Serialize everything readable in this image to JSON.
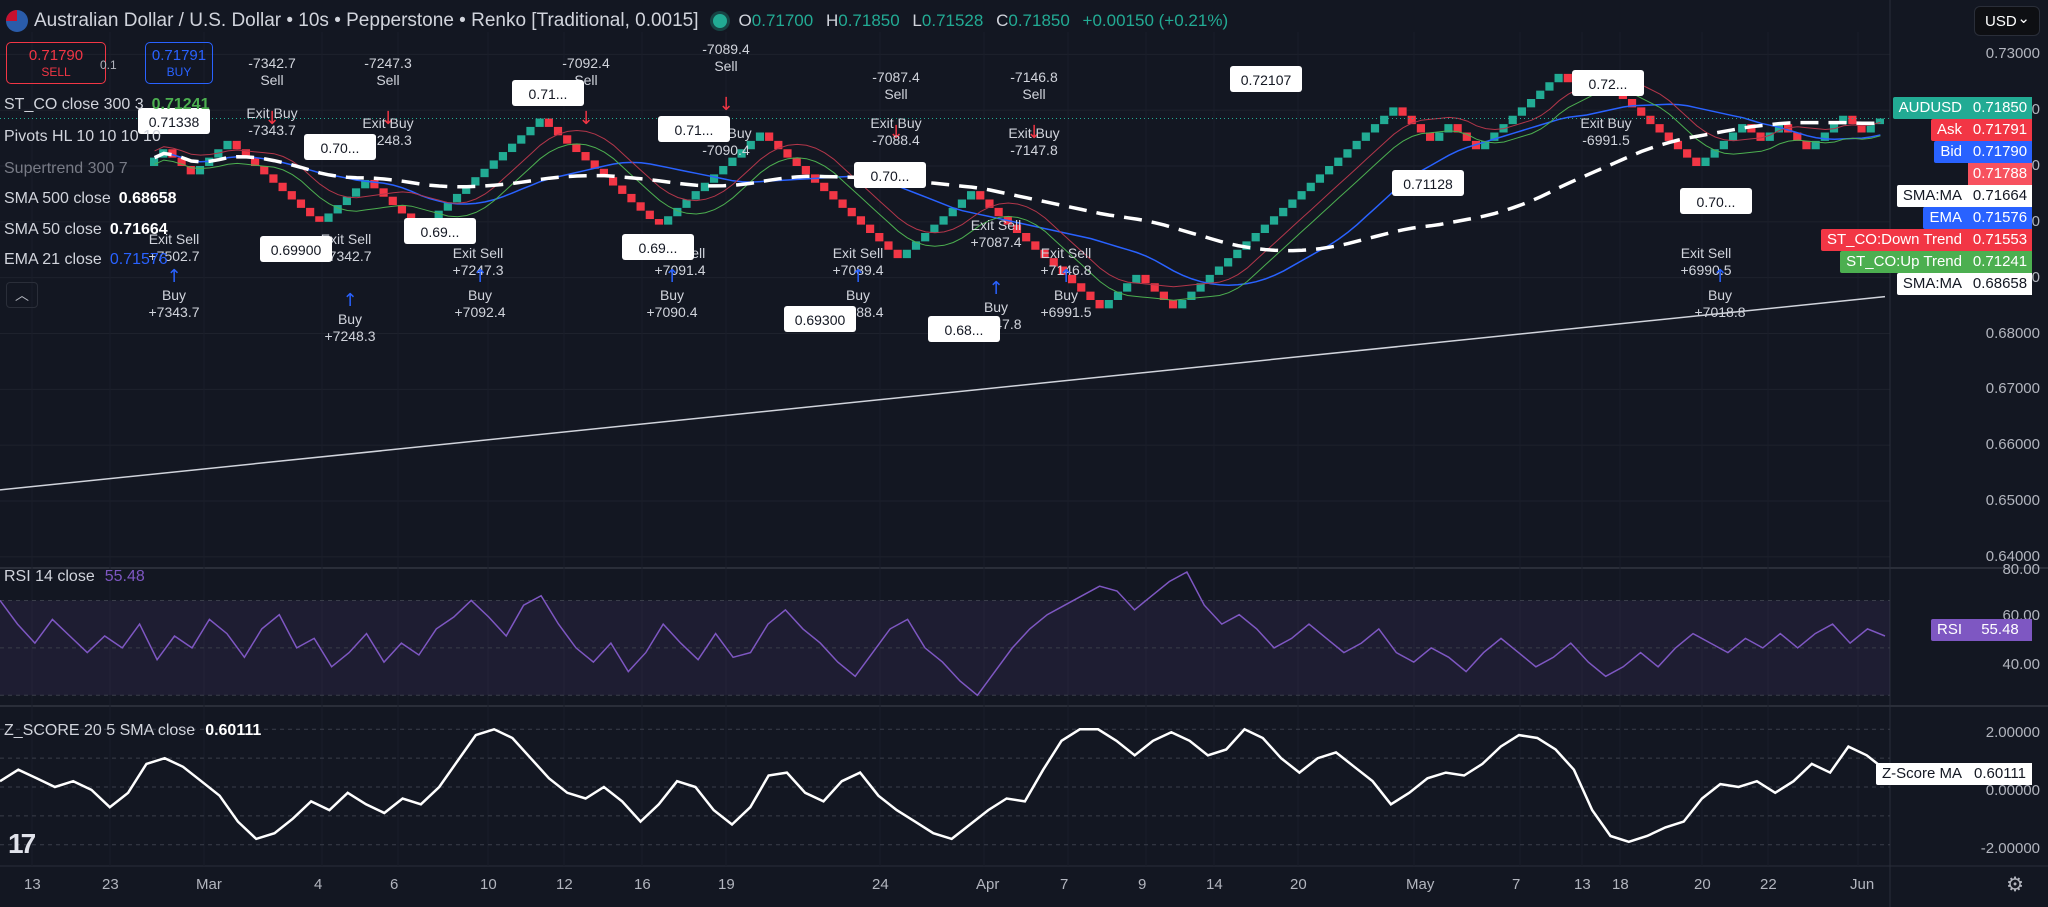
{
  "header": {
    "title": "Australian Dollar / U.S. Dollar • 10s • Pepperstone • Renko [Traditional, 0.0015]",
    "o_label": "O",
    "o": "0.71700",
    "h_label": "H",
    "h": "0.71850",
    "l_label": "L",
    "l": "0.71528",
    "c_label": "C",
    "c": "0.71850",
    "change": "+0.00150 (+0.21%)",
    "currency": "USD"
  },
  "trade": {
    "sell_price": "0.71790",
    "sell_label": "SELL",
    "spread": "0.1",
    "buy_price": "0.71791",
    "buy_label": "BUY"
  },
  "legend": {
    "st": {
      "label": "ST_CO close 300 3",
      "value": "0.71241"
    },
    "pivots": {
      "label": "Pivots HL 10 10 10 10"
    },
    "supertrend": {
      "label": "Supertrend 300 7"
    },
    "sma500": {
      "label": "SMA 500 close",
      "value": "0.68658"
    },
    "sma50": {
      "label": "SMA 50 close",
      "value": "0.71664"
    },
    "ema21": {
      "label": "EMA 21 close",
      "value": "0.71576"
    }
  },
  "price_scale": {
    "ticks": [
      "0.73000",
      "0.72000",
      "0.71000",
      "0.70000",
      "0.69000",
      "0.68000",
      "0.67000",
      "0.66000",
      "0.65000",
      "0.64000"
    ],
    "labels": [
      {
        "name": "AUDUSD",
        "value": "0.71850",
        "color": "#22ab94"
      },
      {
        "name": "Ask",
        "value": "0.71791",
        "color": "#f23645"
      },
      {
        "name": "Bid",
        "value": "0.71790",
        "color": "#2962ff"
      },
      {
        "name": "",
        "value": "0.71788",
        "color": "#f7525f"
      },
      {
        "name": "SMA:MA",
        "value": "0.71664",
        "color": "#ffffff"
      },
      {
        "name": "EMA",
        "value": "0.71576",
        "color": "#2962ff"
      },
      {
        "name": "ST_CO:Down Trend",
        "value": "0.71553",
        "color": "#f23645"
      },
      {
        "name": "ST_CO:Up Trend",
        "value": "0.71241",
        "color": "#4caf50"
      },
      {
        "name": "SMA:MA",
        "value": "0.68658",
        "color": "#ffffff"
      }
    ]
  },
  "x_axis": [
    "13",
    "23",
    "Mar",
    "4",
    "6",
    "10",
    "12",
    "16",
    "19",
    "24",
    "Apr",
    "7",
    "9",
    "14",
    "20",
    "May",
    "7",
    "13",
    "18",
    "20",
    "22",
    "Jun"
  ],
  "rsi": {
    "title": "RSI 14 close",
    "value": "55.48",
    "label": "RSI",
    "ticks": [
      "80.00",
      "60.00",
      "40.00"
    ]
  },
  "zscore": {
    "title": "Z_SCORE 20 5 SMA close",
    "value": "0.60111",
    "label": "Z-Score MA",
    "ticks": [
      "2.00000",
      "0.00000",
      "-2.00000"
    ]
  },
  "chart_data": [
    {
      "type": "line",
      "title": "Australian Dollar / U.S. Dollar • 10s • Pepperstone • Renko [Traditional, 0.0015]",
      "chart_kind": "renko",
      "ylim": [
        0.638,
        0.734
      ],
      "x_ticks": [
        "13",
        "23",
        "Mar",
        "4",
        "6",
        "10",
        "12",
        "16",
        "19",
        "24",
        "Apr",
        "7",
        "9",
        "14",
        "20",
        "May",
        "7",
        "13",
        "18",
        "20",
        "22",
        "Jun"
      ],
      "renko_close": [
        0.7115,
        0.713,
        0.7115,
        0.71,
        0.7085,
        0.71,
        0.7115,
        0.713,
        0.7145,
        0.713,
        0.7115,
        0.71,
        0.7085,
        0.707,
        0.7055,
        0.704,
        0.7025,
        0.701,
        0.7,
        0.7015,
        0.703,
        0.7045,
        0.706,
        0.7075,
        0.706,
        0.7045,
        0.703,
        0.7015,
        0.7,
        0.699,
        0.7005,
        0.702,
        0.7035,
        0.705,
        0.7065,
        0.708,
        0.7095,
        0.711,
        0.7125,
        0.714,
        0.7155,
        0.717,
        0.7185,
        0.717,
        0.7155,
        0.714,
        0.7125,
        0.711,
        0.7095,
        0.708,
        0.7065,
        0.705,
        0.7035,
        0.702,
        0.7005,
        0.6995,
        0.701,
        0.7025,
        0.704,
        0.7055,
        0.707,
        0.7085,
        0.71,
        0.7115,
        0.713,
        0.7145,
        0.716,
        0.7145,
        0.713,
        0.7115,
        0.71,
        0.7085,
        0.707,
        0.7055,
        0.704,
        0.7025,
        0.701,
        0.6995,
        0.698,
        0.6965,
        0.695,
        0.6935,
        0.695,
        0.6965,
        0.698,
        0.6995,
        0.701,
        0.7025,
        0.704,
        0.7055,
        0.704,
        0.7025,
        0.701,
        0.6995,
        0.698,
        0.6965,
        0.695,
        0.6935,
        0.692,
        0.6905,
        0.689,
        0.6875,
        0.686,
        0.6845,
        0.686,
        0.6875,
        0.689,
        0.6905,
        0.689,
        0.6875,
        0.686,
        0.6845,
        0.686,
        0.6875,
        0.689,
        0.6905,
        0.692,
        0.6935,
        0.695,
        0.6965,
        0.698,
        0.6995,
        0.701,
        0.7025,
        0.704,
        0.7055,
        0.707,
        0.7085,
        0.71,
        0.7115,
        0.713,
        0.7145,
        0.716,
        0.7175,
        0.719,
        0.7205,
        0.719,
        0.7175,
        0.716,
        0.7145,
        0.716,
        0.7175,
        0.716,
        0.7145,
        0.713,
        0.7145,
        0.716,
        0.7175,
        0.719,
        0.7205,
        0.722,
        0.7235,
        0.725,
        0.7265,
        0.725,
        0.7235,
        0.725,
        0.7265,
        0.725,
        0.7235,
        0.722,
        0.7205,
        0.719,
        0.7175,
        0.716,
        0.7145,
        0.713,
        0.7115,
        0.71,
        0.7115,
        0.713,
        0.7145,
        0.716,
        0.7175,
        0.716,
        0.7145,
        0.716,
        0.7175,
        0.716,
        0.7145,
        0.713,
        0.7145,
        0.716,
        0.7175,
        0.719,
        0.7175,
        0.716,
        0.7175,
        0.7185
      ],
      "series": [
        {
          "name": "SMA 500 close",
          "y_start": 0.652,
          "y_end": 0.6866
        },
        {
          "name": "SMA 50 close",
          "y_last": 0.71664
        },
        {
          "name": "EMA 21 close",
          "y_last": 0.71576
        },
        {
          "name": "ST_CO close 300 3",
          "y_last": 0.71241
        }
      ],
      "pivot_labels": [
        "0.71338",
        "0.69900",
        "0.70...",
        "0.69...",
        "0.71...",
        "0.69...",
        "0.71...",
        "0.70...",
        "0.69300",
        "0.68...",
        "0.72107",
        "0.71128",
        "0.72...",
        "0.70..."
      ],
      "trade_annotations": [
        {
          "text": "Buy",
          "pnl": "+7343.7"
        },
        {
          "text": "Exit Sell",
          "pnl": "+7502.7"
        },
        {
          "text": "Sell",
          "pnl": "-7342.7"
        },
        {
          "text": "Exit Buy",
          "pnl": "-7343.7"
        },
        {
          "text": "Exit Sell",
          "pnl": "+7342.7"
        },
        {
          "text": "Buy",
          "pnl": "+7248.3"
        },
        {
          "text": "Sell",
          "pnl": "-7247.3"
        },
        {
          "text": "Exit Buy",
          "pnl": "-7248.3"
        },
        {
          "text": "Exit Sell",
          "pnl": "+7247.3"
        },
        {
          "text": "Buy",
          "pnl": "+7092.4"
        },
        {
          "text": "Sell",
          "pnl": "-7092.4"
        },
        {
          "text": "Exit Sell",
          "pnl": "+7091.4"
        },
        {
          "text": "Buy",
          "pnl": "+7090.4"
        },
        {
          "text": "Sell",
          "pnl": "-7089.4"
        },
        {
          "text": "Exit Buy",
          "pnl": "-7090.4"
        },
        {
          "text": "Sell",
          "pnl": "-7087.4"
        },
        {
          "text": "Exit Buy",
          "pnl": "-7088.4"
        },
        {
          "text": "Exit Sell",
          "pnl": "+7089.4"
        },
        {
          "text": "Buy",
          "pnl": "+7088.4"
        },
        {
          "text": "Sell",
          "pnl": "-7146.8"
        },
        {
          "text": "Exit Buy",
          "pnl": "-7147.8"
        },
        {
          "text": "Exit Sell",
          "pnl": "+7087.4"
        },
        {
          "text": "Buy",
          "pnl": "+7147.8"
        },
        {
          "text": "Exit Sell",
          "pnl": "+7146.8"
        },
        {
          "text": "Buy",
          "pnl": "+6991.5"
        },
        {
          "text": "Exit Buy",
          "pnl": "-6991.5"
        },
        {
          "text": "Exit Sell",
          "pnl": "+6990.5"
        },
        {
          "text": "Buy",
          "pnl": "+7018.8"
        }
      ]
    },
    {
      "type": "line",
      "title": "RSI 14 close",
      "ylim": [
        28,
        82
      ],
      "bands": [
        70,
        30
      ],
      "series": [
        {
          "name": "RSI",
          "values": [
            70,
            60,
            52,
            62,
            55,
            48,
            55,
            50,
            60,
            45,
            55,
            50,
            62,
            56,
            46,
            58,
            64,
            50,
            54,
            42,
            48,
            56,
            44,
            52,
            47,
            58,
            63,
            70,
            63,
            55,
            68,
            72,
            60,
            50,
            44,
            52,
            40,
            48,
            60,
            52,
            45,
            56,
            46,
            48,
            60,
            66,
            58,
            52,
            44,
            38,
            48,
            58,
            62,
            50,
            44,
            36,
            30,
            40,
            50,
            58,
            64,
            68,
            72,
            76,
            74,
            66,
            72,
            78,
            82,
            68,
            60,
            64,
            58,
            50,
            54,
            60,
            54,
            48,
            52,
            58,
            48,
            44,
            50,
            46,
            40,
            48,
            54,
            48,
            42,
            46,
            52,
            44,
            38,
            42,
            48,
            42,
            50,
            56,
            52,
            48,
            54,
            50,
            56,
            50,
            56,
            60,
            52,
            58,
            55
          ]
        }
      ]
    },
    {
      "type": "line",
      "title": "Z_SCORE 20 5 SMA close",
      "ylim": [
        -2.6,
        2.6
      ],
      "series": [
        {
          "name": "Z_SCORE",
          "values": [
            0.2,
            0.6,
            0.3,
            0.0,
            0.2,
            -0.1,
            -0.7,
            -0.2,
            0.8,
            1.0,
            0.7,
            0.2,
            -0.3,
            -1.2,
            -1.8,
            -1.6,
            -1.1,
            -0.5,
            -0.8,
            -0.2,
            -0.6,
            -0.9,
            -0.4,
            -0.6,
            0.0,
            0.9,
            1.8,
            2.0,
            1.7,
            1.0,
            0.3,
            -0.2,
            -0.4,
            0.0,
            -0.5,
            -1.2,
            -0.6,
            0.2,
            0.0,
            -0.8,
            -1.3,
            -0.7,
            0.4,
            0.5,
            -0.2,
            -0.5,
            0.2,
            0.5,
            -0.3,
            -0.8,
            -1.2,
            -1.6,
            -1.8,
            -1.3,
            -0.8,
            -0.4,
            -0.5,
            0.6,
            1.6,
            2.0,
            2.0,
            1.6,
            1.1,
            1.6,
            1.9,
            1.6,
            1.1,
            1.3,
            2.0,
            1.7,
            1.0,
            0.5,
            1.0,
            1.2,
            0.7,
            0.2,
            -0.6,
            -0.2,
            0.3,
            0.5,
            0.4,
            0.8,
            1.4,
            1.8,
            1.7,
            1.3,
            0.6,
            -0.8,
            -1.7,
            -1.9,
            -1.7,
            -1.4,
            -1.2,
            -0.4,
            0.1,
            0.0,
            0.2,
            -0.2,
            0.2,
            0.8,
            0.5,
            1.4,
            1.1,
            0.6
          ]
        }
      ]
    }
  ]
}
